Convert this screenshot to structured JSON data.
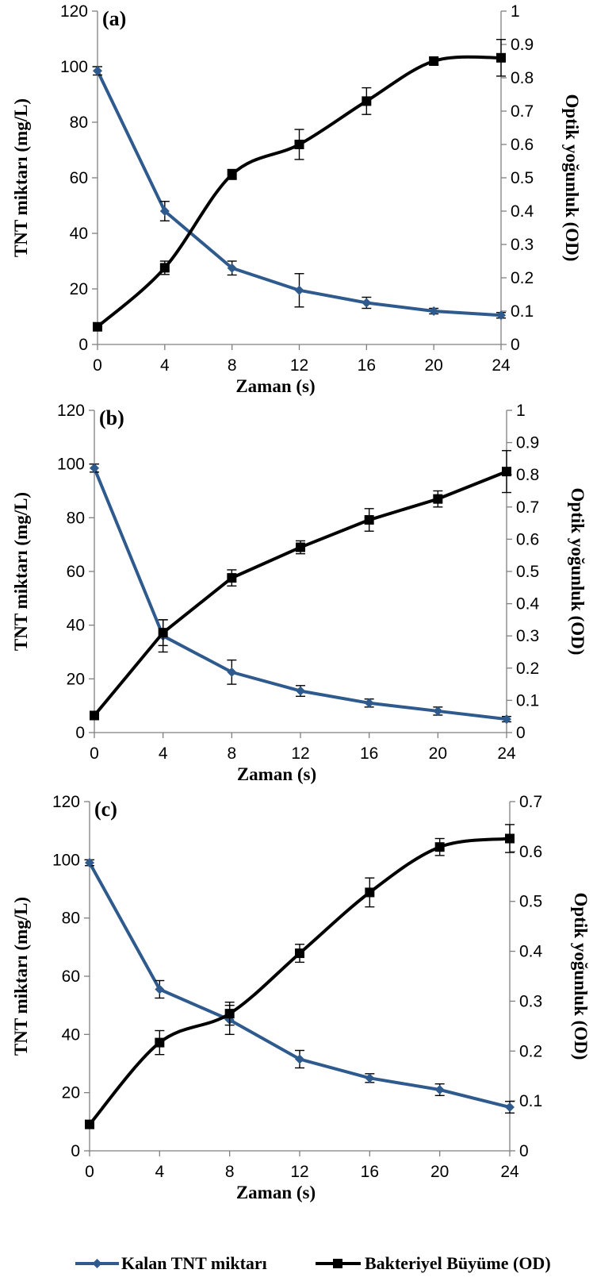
{
  "colors": {
    "tnt": "#2E5A8E",
    "growth": "#000000",
    "axis": "#7f7f7f"
  },
  "legend": {
    "tnt_label": "Kalan TNT miktarı",
    "growth_label": "Bakteriyel Büyüme (OD)"
  },
  "chart_data": [
    {
      "type": "line",
      "panel_label": "(a)",
      "xlabel": "Zaman (s)",
      "ylabel": "TNT miktarı (mg/L)",
      "y2label": "Optik yoğunluk (OD)",
      "x": [
        0,
        4,
        8,
        12,
        16,
        20,
        24
      ],
      "xlim": [
        0,
        24
      ],
      "ylim": [
        0,
        120
      ],
      "y2lim": [
        0,
        1
      ],
      "yticks": [
        0,
        20,
        40,
        60,
        80,
        100,
        120
      ],
      "y2ticks": [
        0,
        0.1,
        0.2,
        0.3,
        0.4,
        0.5,
        0.6,
        0.7,
        0.8,
        0.9,
        1
      ],
      "grid": false,
      "series": [
        {
          "name": "Kalan TNT miktarı",
          "axis": "left",
          "marker": "diamond",
          "smooth": false,
          "values": [
            98.5,
            48,
            27.5,
            19.5,
            15,
            12,
            10.5
          ],
          "errors": [
            1.5,
            3.5,
            2.5,
            6,
            2,
            1,
            1
          ]
        },
        {
          "name": "Bakteriyel Büyüme (OD)",
          "axis": "right",
          "marker": "square",
          "smooth": true,
          "values": [
            0.053,
            0.23,
            0.51,
            0.6,
            0.73,
            0.85,
            0.86
          ],
          "errors": [
            0.005,
            0.02,
            0.015,
            0.045,
            0.04,
            0.01,
            0.055
          ]
        }
      ]
    },
    {
      "type": "line",
      "panel_label": "(b)",
      "xlabel": "Zaman (s)",
      "ylabel": "TNT miktarı (mg/L)",
      "y2label": "Optik yoğunluk (OD)",
      "x": [
        0,
        4,
        8,
        12,
        16,
        20,
        24
      ],
      "xlim": [
        0,
        24
      ],
      "ylim": [
        0,
        120
      ],
      "y2lim": [
        0,
        1
      ],
      "yticks": [
        0,
        20,
        40,
        60,
        80,
        100,
        120
      ],
      "y2ticks": [
        0,
        0.1,
        0.2,
        0.3,
        0.4,
        0.5,
        0.6,
        0.7,
        0.8,
        0.9,
        1
      ],
      "grid": false,
      "series": [
        {
          "name": "Kalan TNT miktarı",
          "axis": "left",
          "marker": "diamond",
          "smooth": false,
          "values": [
            98.5,
            36,
            22.5,
            15.5,
            11,
            8,
            5
          ],
          "errors": [
            1.5,
            6,
            4.5,
            2,
            1.5,
            1.5,
            1
          ]
        },
        {
          "name": "Bakteriyel Büyüme (OD)",
          "axis": "right",
          "marker": "square",
          "smooth": false,
          "values": [
            0.053,
            0.31,
            0.48,
            0.575,
            0.66,
            0.725,
            0.81
          ],
          "errors": [
            0.005,
            0.04,
            0.025,
            0.02,
            0.035,
            0.025,
            0.065
          ]
        }
      ]
    },
    {
      "type": "line",
      "panel_label": "(c)",
      "xlabel": "Zaman (s)",
      "ylabel": "TNT miktarı (mg/L)",
      "y2label": "Optik yoğunluk (OD)",
      "x": [
        0,
        4,
        8,
        12,
        16,
        20,
        24
      ],
      "xlim": [
        0,
        24
      ],
      "ylim": [
        0,
        120
      ],
      "y2lim": [
        0,
        0.7
      ],
      "yticks": [
        0,
        20,
        40,
        60,
        80,
        100,
        120
      ],
      "y2ticks": [
        0,
        0.1,
        0.2,
        0.3,
        0.4,
        0.5,
        0.6,
        0.7
      ],
      "grid": false,
      "series": [
        {
          "name": "Kalan TNT miktarı",
          "axis": "left",
          "marker": "diamond",
          "smooth": false,
          "values": [
            99,
            55.5,
            45,
            31.5,
            25,
            21,
            15
          ],
          "errors": [
            1,
            3,
            5,
            3,
            1.5,
            2,
            2
          ]
        },
        {
          "name": "Bakteriyel Büyüme (OD)",
          "axis": "right",
          "marker": "square",
          "smooth": true,
          "values": [
            0.053,
            0.217,
            0.275,
            0.396,
            0.518,
            0.609,
            0.626
          ],
          "errors": [
            0.005,
            0.024,
            0.023,
            0.018,
            0.029,
            0.017,
            0.028
          ]
        }
      ]
    }
  ]
}
